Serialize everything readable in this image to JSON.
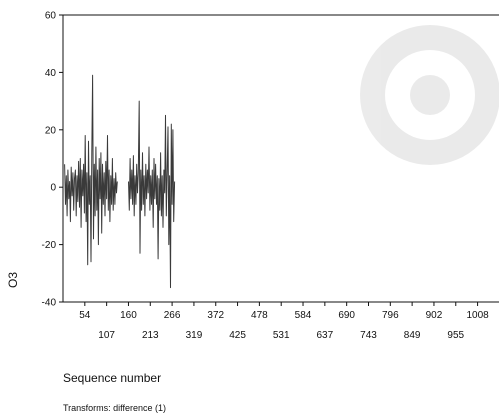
{
  "chart_data": {
    "type": "line",
    "title": "",
    "xlabel": "Sequence number",
    "ylabel": "O3",
    "note": "Transforms: difference (1)",
    "xlim": [
      1,
      1060
    ],
    "ylim": [
      -40,
      60
    ],
    "yticks": [
      -40,
      -20,
      0,
      20,
      40,
      60
    ],
    "xticks_row1": [
      54,
      160,
      266,
      372,
      478,
      584,
      690,
      796,
      902,
      1008
    ],
    "xticks_row2": [
      107,
      213,
      319,
      425,
      531,
      637,
      743,
      849,
      955
    ],
    "grid": false,
    "legend": "none",
    "series": [
      {
        "color": "#3a3a3a",
        "segments": [
          {
            "x": [
              5,
              7,
              9,
              11,
              13,
              15,
              17,
              19,
              21,
              23,
              25,
              27,
              29,
              31,
              33,
              35,
              37,
              39,
              41,
              43,
              45,
              47,
              49,
              51,
              53,
              55,
              57,
              59,
              61,
              63,
              65,
              67,
              69,
              71,
              73,
              75,
              77,
              79,
              81,
              83,
              85,
              87,
              89,
              91,
              93,
              95,
              97,
              99,
              101,
              103,
              105,
              107,
              109,
              111,
              113,
              115,
              117,
              119,
              121,
              123,
              125,
              127,
              129,
              131,
              133
            ],
            "y": [
              8,
              -6,
              4,
              -10,
              6,
              -4,
              2,
              -12,
              7,
              -3,
              5,
              -8,
              3,
              6,
              -10,
              4,
              -5,
              9,
              -7,
              10,
              -14,
              6,
              -3,
              8,
              -9,
              18,
              -12,
              5,
              -27,
              16,
              -6,
              4,
              -26,
              12,
              39,
              -18,
              8,
              -10,
              14,
              -8,
              6,
              -20,
              10,
              -4,
              12,
              -16,
              8,
              -6,
              5,
              -10,
              9,
              -4,
              18,
              -8,
              6,
              -12,
              4,
              -6,
              10,
              -8,
              3,
              -6,
              5,
              -2,
              2
            ]
          },
          {
            "x": [
              160,
              162,
              164,
              166,
              168,
              170,
              172,
              174,
              176,
              178,
              180,
              182,
              184,
              186,
              188,
              190,
              192,
              194,
              196,
              198,
              200,
              202,
              204,
              206,
              208,
              210,
              212,
              214,
              216,
              218,
              220,
              222,
              224,
              226,
              228,
              230,
              232,
              234,
              236,
              238,
              240,
              242,
              244,
              246,
              248,
              250,
              252,
              254,
              256,
              258,
              260,
              262,
              264,
              266,
              268,
              270,
              272
            ],
            "y": [
              2,
              -8,
              10,
              -4,
              6,
              -6,
              11,
              -10,
              4,
              -6,
              8,
              -2,
              5,
              30,
              -23,
              6,
              -8,
              12,
              -6,
              4,
              -10,
              8,
              -4,
              6,
              -2,
              14,
              -8,
              4,
              -6,
              6,
              -14,
              10,
              -4,
              8,
              -6,
              4,
              -25,
              3,
              -8,
              12,
              -10,
              4,
              -14,
              6,
              -2,
              25,
              -10,
              6,
              21,
              -20,
              4,
              -35,
              22,
              -6,
              20,
              -12,
              2
            ]
          }
        ]
      }
    ]
  }
}
